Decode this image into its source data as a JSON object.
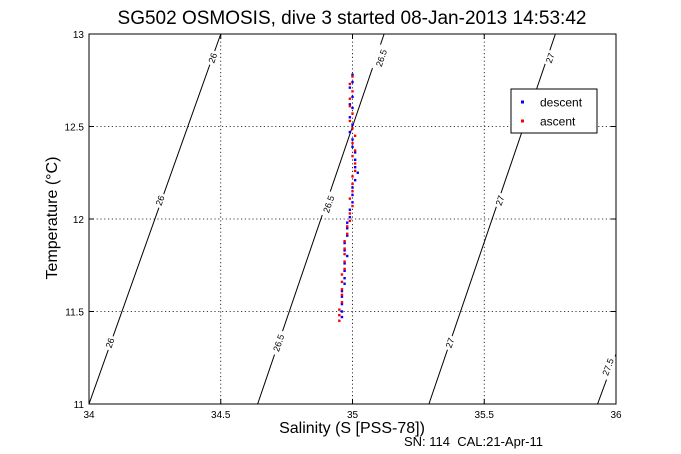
{
  "chart_data": {
    "type": "scatter",
    "title": "SG502 OSMOSIS, dive 3 started 08-Jan-2013 14:53:42",
    "xlabel": "Salinity (S [PSS-78])",
    "ylabel": "Temperature (°C)",
    "xlim": [
      34,
      36
    ],
    "ylim": [
      11,
      13
    ],
    "xticks": [
      "34",
      "34.5",
      "35",
      "35.5",
      "36"
    ],
    "yticks": [
      "11",
      "11.5",
      "12",
      "12.5",
      "13"
    ],
    "grid": true,
    "legend_position": "top-right",
    "footer": "SN: 114  CAL:21-Apr-11",
    "contours": [
      {
        "label": "26",
        "points": [
          [
            34.0,
            11.0
          ],
          [
            34.5,
            13.0
          ]
        ],
        "label_positions": [
          [
            34.08,
            11.33
          ],
          [
            34.27,
            12.1
          ],
          [
            34.47,
            12.87
          ]
        ]
      },
      {
        "label": "26.5",
        "points": [
          [
            34.64,
            11.0
          ],
          [
            35.12,
            13.0
          ]
        ],
        "label_positions": [
          [
            34.72,
            11.33
          ],
          [
            34.91,
            12.08
          ],
          [
            35.11,
            12.87
          ]
        ]
      },
      {
        "label": "27",
        "points": [
          [
            35.29,
            11.0
          ],
          [
            35.77,
            13.0
          ]
        ],
        "label_positions": [
          [
            35.37,
            11.33
          ],
          [
            35.56,
            12.1
          ],
          [
            35.75,
            12.87
          ]
        ]
      },
      {
        "label": "27.5",
        "points": [
          [
            35.93,
            11.0
          ],
          [
            36.0,
            11.27
          ]
        ],
        "label_positions": [
          [
            35.97,
            11.2
          ]
        ]
      }
    ],
    "series": [
      {
        "name": "descent",
        "color": "#0000ff",
        "points": [
          [
            35.0,
            12.78
          ],
          [
            35.0,
            12.74
          ],
          [
            34.99,
            12.71
          ],
          [
            35.0,
            12.66
          ],
          [
            34.99,
            12.62
          ],
          [
            35.0,
            12.6
          ],
          [
            34.99,
            12.55
          ],
          [
            35.0,
            12.51
          ],
          [
            34.99,
            12.47
          ],
          [
            35.0,
            12.43
          ],
          [
            35.0,
            12.39
          ],
          [
            35.01,
            12.36
          ],
          [
            35.01,
            12.32
          ],
          [
            35.01,
            12.28
          ],
          [
            35.02,
            12.25
          ],
          [
            35.01,
            12.21
          ],
          [
            35.0,
            12.17
          ],
          [
            35.0,
            12.13
          ],
          [
            35.0,
            12.09
          ],
          [
            34.99,
            12.05
          ],
          [
            34.99,
            12.01
          ],
          [
            34.98,
            11.98
          ],
          [
            34.98,
            11.95
          ],
          [
            34.98,
            11.91
          ],
          [
            34.97,
            11.87
          ],
          [
            34.97,
            11.83
          ],
          [
            34.98,
            11.8
          ],
          [
            34.97,
            11.76
          ],
          [
            34.97,
            11.72
          ],
          [
            34.97,
            11.68
          ],
          [
            34.97,
            11.65
          ],
          [
            34.96,
            11.61
          ],
          [
            34.96,
            11.58
          ],
          [
            34.96,
            11.54
          ],
          [
            34.96,
            11.5
          ],
          [
            34.96,
            11.47
          ]
        ]
      },
      {
        "name": "ascent",
        "color": "#ff0000",
        "points": [
          [
            35.0,
            12.77
          ],
          [
            34.99,
            12.73
          ],
          [
            35.0,
            12.69
          ],
          [
            34.99,
            12.65
          ],
          [
            34.99,
            12.61
          ],
          [
            35.0,
            12.57
          ],
          [
            34.99,
            12.53
          ],
          [
            35.0,
            12.49
          ],
          [
            35.01,
            12.45
          ],
          [
            35.0,
            12.41
          ],
          [
            35.01,
            12.37
          ],
          [
            35.0,
            12.34
          ],
          [
            35.01,
            12.3
          ],
          [
            35.01,
            12.26
          ],
          [
            35.0,
            12.23
          ],
          [
            35.0,
            12.19
          ],
          [
            35.0,
            12.15
          ],
          [
            34.99,
            12.11
          ],
          [
            35.0,
            12.07
          ],
          [
            34.99,
            12.03
          ],
          [
            34.99,
            11.99
          ],
          [
            34.98,
            11.96
          ],
          [
            34.98,
            11.92
          ],
          [
            34.97,
            11.88
          ],
          [
            34.97,
            11.84
          ],
          [
            34.97,
            11.81
          ],
          [
            34.97,
            11.77
          ],
          [
            34.97,
            11.73
          ],
          [
            34.96,
            11.7
          ],
          [
            34.96,
            11.66
          ],
          [
            34.96,
            11.62
          ],
          [
            34.96,
            11.59
          ],
          [
            34.96,
            11.55
          ],
          [
            34.95,
            11.51
          ],
          [
            34.95,
            11.48
          ],
          [
            34.95,
            11.45
          ]
        ]
      }
    ]
  }
}
